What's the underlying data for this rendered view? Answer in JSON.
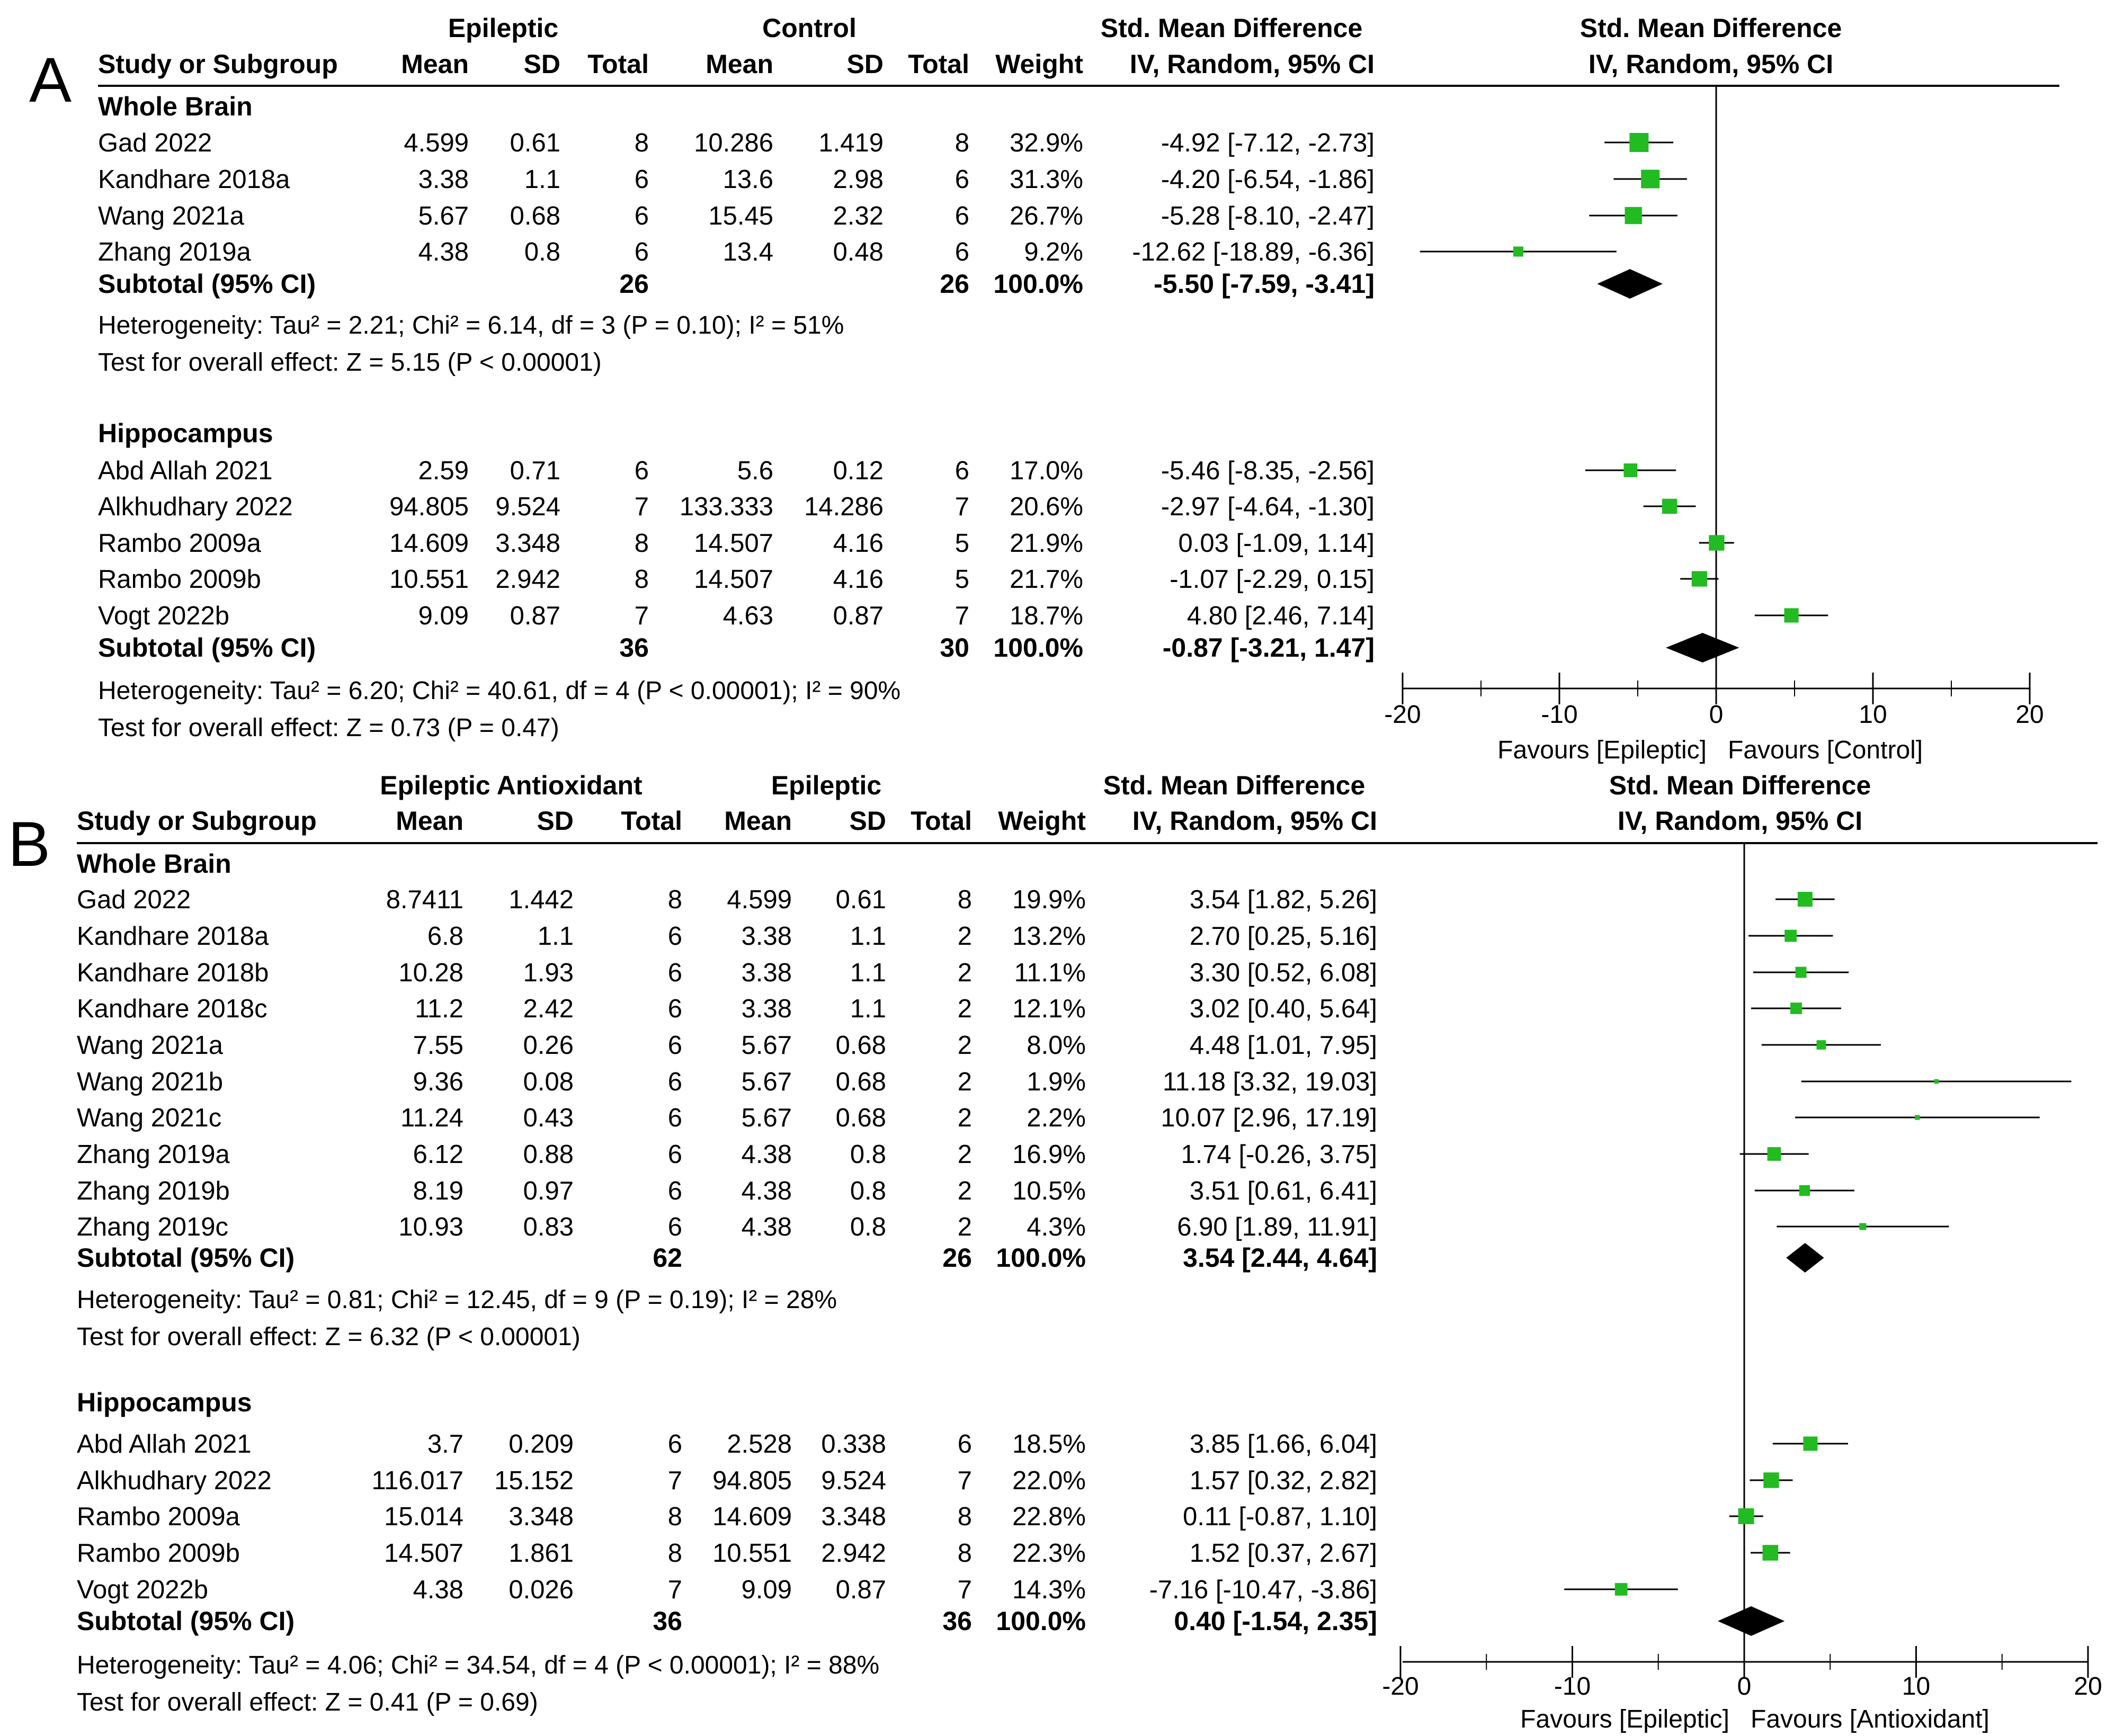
{
  "chart_data": [
    {
      "type": "forest",
      "panel": "A",
      "col_groups": {
        "g1": "Epileptic",
        "g2": "Control",
        "smd": "Std. Mean Difference",
        "plot": "Std. Mean Difference"
      },
      "columns": {
        "study": "Study or Subgroup",
        "mean1": "Mean",
        "sd1": "SD",
        "n1": "Total",
        "mean2": "Mean",
        "sd2": "SD",
        "n2": "Total",
        "weight": "Weight",
        "ci": "IV, Random, 95% CI",
        "plot_ci": "IV, Random, 95% CI"
      },
      "xlim": [
        -20,
        20
      ],
      "ticks": [
        -20,
        -10,
        0,
        10,
        20
      ],
      "tick_labels": [
        "-20",
        "-10",
        "0",
        "10",
        "20"
      ],
      "favours": [
        "Favours [Epileptic]",
        "Favours [Control]"
      ],
      "subgroups": [
        {
          "name": "Whole Brain",
          "studies": [
            {
              "study": "Gad 2022",
              "mean1": "4.599",
              "sd1": "0.61",
              "n1": "8",
              "mean2": "10.286",
              "sd2": "1.419",
              "n2": "8",
              "weight": "32.9%",
              "ci": "-4.92 [-7.12, -2.73]",
              "est": -4.92,
              "lo": -7.12,
              "hi": -2.73,
              "w": 32.9
            },
            {
              "study": "Kandhare 2018a",
              "mean1": "3.38",
              "sd1": "1.1",
              "n1": "6",
              "mean2": "13.6",
              "sd2": "2.98",
              "n2": "6",
              "weight": "31.3%",
              "ci": "-4.20 [-6.54, -1.86]",
              "est": -4.2,
              "lo": -6.54,
              "hi": -1.86,
              "w": 31.3
            },
            {
              "study": "Wang 2021a",
              "mean1": "5.67",
              "sd1": "0.68",
              "n1": "6",
              "mean2": "15.45",
              "sd2": "2.32",
              "n2": "6",
              "weight": "26.7%",
              "ci": "-5.28 [-8.10, -2.47]",
              "est": -5.28,
              "lo": -8.1,
              "hi": -2.47,
              "w": 26.7
            },
            {
              "study": "Zhang 2019a",
              "mean1": "4.38",
              "sd1": "0.8",
              "n1": "6",
              "mean2": "13.4",
              "sd2": "0.48",
              "n2": "6",
              "weight": "9.2%",
              "ci": "-12.62 [-18.89, -6.36]",
              "est": -12.62,
              "lo": -18.89,
              "hi": -6.36,
              "w": 9.2
            }
          ],
          "subtotal": {
            "label": "Subtotal (95% CI)",
            "n1": "26",
            "n2": "26",
            "weight": "100.0%",
            "ci": "-5.50 [-7.59, -3.41]",
            "est": -5.5,
            "lo": -7.59,
            "hi": -3.41
          },
          "heterogeneity": "Heterogeneity: Tau² = 2.21; Chi² = 6.14, df = 3 (P = 0.10); I² = 51%",
          "overall": "Test for overall effect: Z = 5.15 (P < 0.00001)"
        },
        {
          "name": "Hippocampus",
          "studies": [
            {
              "study": "Abd Allah 2021",
              "mean1": "2.59",
              "sd1": "0.71",
              "n1": "6",
              "mean2": "5.6",
              "sd2": "0.12",
              "n2": "6",
              "weight": "17.0%",
              "ci": "-5.46 [-8.35, -2.56]",
              "est": -5.46,
              "lo": -8.35,
              "hi": -2.56,
              "w": 17.0
            },
            {
              "study": "Alkhudhary 2022",
              "mean1": "94.805",
              "sd1": "9.524",
              "n1": "7",
              "mean2": "133.333",
              "sd2": "14.286",
              "n2": "7",
              "weight": "20.6%",
              "ci": "-2.97 [-4.64, -1.30]",
              "est": -2.97,
              "lo": -4.64,
              "hi": -1.3,
              "w": 20.6
            },
            {
              "study": "Rambo 2009a",
              "mean1": "14.609",
              "sd1": "3.348",
              "n1": "8",
              "mean2": "14.507",
              "sd2": "4.16",
              "n2": "5",
              "weight": "21.9%",
              "ci": "0.03 [-1.09, 1.14]",
              "est": 0.03,
              "lo": -1.09,
              "hi": 1.14,
              "w": 21.9
            },
            {
              "study": "Rambo 2009b",
              "mean1": "10.551",
              "sd1": "2.942",
              "n1": "8",
              "mean2": "14.507",
              "sd2": "4.16",
              "n2": "5",
              "weight": "21.7%",
              "ci": "-1.07 [-2.29, 0.15]",
              "est": -1.07,
              "lo": -2.29,
              "hi": 0.15,
              "w": 21.7
            },
            {
              "study": "Vogt 2022b",
              "mean1": "9.09",
              "sd1": "0.87",
              "n1": "7",
              "mean2": "4.63",
              "sd2": "0.87",
              "n2": "7",
              "weight": "18.7%",
              "ci": "4.80 [2.46, 7.14]",
              "est": 4.8,
              "lo": 2.46,
              "hi": 7.14,
              "w": 18.7
            }
          ],
          "subtotal": {
            "label": "Subtotal (95% CI)",
            "n1": "36",
            "n2": "30",
            "weight": "100.0%",
            "ci": "-0.87 [-3.21, 1.47]",
            "est": -0.87,
            "lo": -3.21,
            "hi": 1.47
          },
          "heterogeneity": "Heterogeneity: Tau² = 6.20; Chi² = 40.61, df = 4 (P < 0.00001); I² = 90%",
          "overall": "Test for overall effect: Z = 0.73 (P = 0.47)"
        }
      ]
    },
    {
      "type": "forest",
      "panel": "B",
      "col_groups": {
        "g1": "Epileptic Antioxidant",
        "g2": "Epileptic",
        "smd": "Std. Mean Difference",
        "plot": "Std. Mean Difference"
      },
      "columns": {
        "study": "Study or Subgroup",
        "mean1": "Mean",
        "sd1": "SD",
        "n1": "Total",
        "mean2": "Mean",
        "sd2": "SD",
        "n2": "Total",
        "weight": "Weight",
        "ci": "IV, Random, 95% CI",
        "plot_ci": "IV, Random, 95% CI"
      },
      "xlim": [
        -20,
        20
      ],
      "ticks": [
        -20,
        -10,
        0,
        10,
        20
      ],
      "tick_labels": [
        "-20",
        "-10",
        "0",
        "10",
        "20"
      ],
      "favours": [
        "Favours [Epileptic]",
        "Favours [Antioxidant]"
      ],
      "subgroups": [
        {
          "name": "Whole Brain",
          "studies": [
            {
              "study": "Gad 2022",
              "mean1": "8.7411",
              "sd1": "1.442",
              "n1": "8",
              "mean2": "4.599",
              "sd2": "0.61",
              "n2": "8",
              "weight": "19.9%",
              "ci": "3.54 [1.82, 5.26]",
              "est": 3.54,
              "lo": 1.82,
              "hi": 5.26,
              "w": 19.9
            },
            {
              "study": "Kandhare 2018a",
              "mean1": "6.8",
              "sd1": "1.1",
              "n1": "6",
              "mean2": "3.38",
              "sd2": "1.1",
              "n2": "2",
              "weight": "13.2%",
              "ci": "2.70 [0.25, 5.16]",
              "est": 2.7,
              "lo": 0.25,
              "hi": 5.16,
              "w": 13.2
            },
            {
              "study": "Kandhare 2018b",
              "mean1": "10.28",
              "sd1": "1.93",
              "n1": "6",
              "mean2": "3.38",
              "sd2": "1.1",
              "n2": "2",
              "weight": "11.1%",
              "ci": "3.30 [0.52, 6.08]",
              "est": 3.3,
              "lo": 0.52,
              "hi": 6.08,
              "w": 11.1
            },
            {
              "study": "Kandhare 2018c",
              "mean1": "11.2",
              "sd1": "2.42",
              "n1": "6",
              "mean2": "3.38",
              "sd2": "1.1",
              "n2": "2",
              "weight": "12.1%",
              "ci": "3.02 [0.40, 5.64]",
              "est": 3.02,
              "lo": 0.4,
              "hi": 5.64,
              "w": 12.1
            },
            {
              "study": "Wang 2021a",
              "mean1": "7.55",
              "sd1": "0.26",
              "n1": "6",
              "mean2": "5.67",
              "sd2": "0.68",
              "n2": "2",
              "weight": "8.0%",
              "ci": "4.48 [1.01, 7.95]",
              "est": 4.48,
              "lo": 1.01,
              "hi": 7.95,
              "w": 8.0
            },
            {
              "study": "Wang 2021b",
              "mean1": "9.36",
              "sd1": "0.08",
              "n1": "6",
              "mean2": "5.67",
              "sd2": "0.68",
              "n2": "2",
              "weight": "1.9%",
              "ci": "11.18 [3.32, 19.03]",
              "est": 11.18,
              "lo": 3.32,
              "hi": 19.03,
              "w": 1.9
            },
            {
              "study": "Wang 2021c",
              "mean1": "11.24",
              "sd1": "0.43",
              "n1": "6",
              "mean2": "5.67",
              "sd2": "0.68",
              "n2": "2",
              "weight": "2.2%",
              "ci": "10.07 [2.96, 17.19]",
              "est": 10.07,
              "lo": 2.96,
              "hi": 17.19,
              "w": 2.2
            },
            {
              "study": "Zhang 2019a",
              "mean1": "6.12",
              "sd1": "0.88",
              "n1": "6",
              "mean2": "4.38",
              "sd2": "0.8",
              "n2": "2",
              "weight": "16.9%",
              "ci": "1.74 [-0.26, 3.75]",
              "est": 1.74,
              "lo": -0.26,
              "hi": 3.75,
              "w": 16.9
            },
            {
              "study": "Zhang 2019b",
              "mean1": "8.19",
              "sd1": "0.97",
              "n1": "6",
              "mean2": "4.38",
              "sd2": "0.8",
              "n2": "2",
              "weight": "10.5%",
              "ci": "3.51 [0.61, 6.41]",
              "est": 3.51,
              "lo": 0.61,
              "hi": 6.41,
              "w": 10.5
            },
            {
              "study": "Zhang 2019c",
              "mean1": "10.93",
              "sd1": "0.83",
              "n1": "6",
              "mean2": "4.38",
              "sd2": "0.8",
              "n2": "2",
              "weight": "4.3%",
              "ci": "6.90 [1.89, 11.91]",
              "est": 6.9,
              "lo": 1.89,
              "hi": 11.91,
              "w": 4.3
            }
          ],
          "subtotal": {
            "label": "Subtotal (95% CI)",
            "n1": "62",
            "n2": "26",
            "weight": "100.0%",
            "ci": "3.54 [2.44, 4.64]",
            "est": 3.54,
            "lo": 2.44,
            "hi": 4.64
          },
          "heterogeneity": "Heterogeneity: Tau² = 0.81; Chi² = 12.45, df = 9 (P = 0.19); I² = 28%",
          "overall": "Test for overall effect: Z = 6.32 (P < 0.00001)"
        },
        {
          "name": "Hippocampus",
          "studies": [
            {
              "study": "Abd Allah 2021",
              "mean1": "3.7",
              "sd1": "0.209",
              "n1": "6",
              "mean2": "2.528",
              "sd2": "0.338",
              "n2": "6",
              "weight": "18.5%",
              "ci": "3.85 [1.66, 6.04]",
              "est": 3.85,
              "lo": 1.66,
              "hi": 6.04,
              "w": 18.5
            },
            {
              "study": "Alkhudhary 2022",
              "mean1": "116.017",
              "sd1": "15.152",
              "n1": "7",
              "mean2": "94.805",
              "sd2": "9.524",
              "n2": "7",
              "weight": "22.0%",
              "ci": "1.57 [0.32, 2.82]",
              "est": 1.57,
              "lo": 0.32,
              "hi": 2.82,
              "w": 22.0
            },
            {
              "study": "Rambo 2009a",
              "mean1": "15.014",
              "sd1": "3.348",
              "n1": "8",
              "mean2": "14.609",
              "sd2": "3.348",
              "n2": "8",
              "weight": "22.8%",
              "ci": "0.11 [-0.87, 1.10]",
              "est": 0.11,
              "lo": -0.87,
              "hi": 1.1,
              "w": 22.8
            },
            {
              "study": "Rambo 2009b",
              "mean1": "14.507",
              "sd1": "1.861",
              "n1": "8",
              "mean2": "10.551",
              "sd2": "2.942",
              "n2": "8",
              "weight": "22.3%",
              "ci": "1.52 [0.37, 2.67]",
              "est": 1.52,
              "lo": 0.37,
              "hi": 2.67,
              "w": 22.3
            },
            {
              "study": "Vogt 2022b",
              "mean1": "4.38",
              "sd1": "0.026",
              "n1": "7",
              "mean2": "9.09",
              "sd2": "0.87",
              "n2": "7",
              "weight": "14.3%",
              "ci": "-7.16 [-10.47, -3.86]",
              "est": -7.16,
              "lo": -10.47,
              "hi": -3.86,
              "w": 14.3
            }
          ],
          "subtotal": {
            "label": "Subtotal (95% CI)",
            "n1": "36",
            "n2": "36",
            "weight": "100.0%",
            "ci": "0.40 [-1.54, 2.35]",
            "est": 0.4,
            "lo": -1.54,
            "hi": 2.35
          },
          "heterogeneity": "Heterogeneity: Tau² = 4.06; Chi² = 34.54, df = 4 (P < 0.00001); I² = 88%",
          "overall": "Test for overall effect: Z = 0.41 (P = 0.69)"
        }
      ]
    }
  ],
  "colors": {
    "marker": "#22bb22",
    "text": "#000000",
    "diamond": "#000000"
  }
}
